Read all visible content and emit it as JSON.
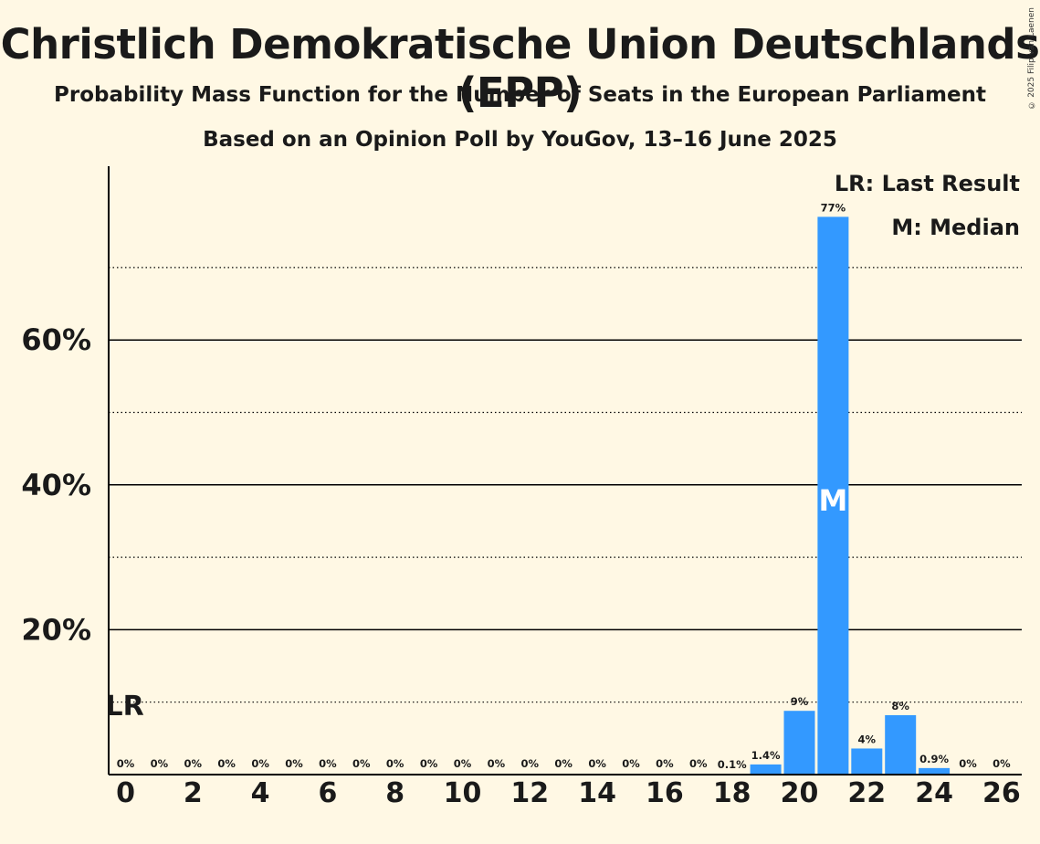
{
  "title": "Christlich Demokratische Union Deutschlands (EPP)",
  "subtitle": "Probability Mass Function for the Number of Seats in the European Parliament",
  "subtitle2": "Based on an Opinion Poll by YouGov, 13–16 June 2025",
  "copyright": "© 2025 Filip van Laenen",
  "colors": {
    "bar": "#3399ff",
    "background": "#fff8e4",
    "text": "#1a1a1a"
  },
  "chart_data": {
    "type": "bar",
    "categories": [
      0,
      1,
      2,
      3,
      4,
      5,
      6,
      7,
      8,
      9,
      10,
      11,
      12,
      13,
      14,
      15,
      16,
      17,
      18,
      19,
      20,
      21,
      22,
      23,
      24,
      25,
      26
    ],
    "values": [
      0,
      0,
      0,
      0,
      0,
      0,
      0,
      0,
      0,
      0,
      0,
      0,
      0,
      0,
      0,
      0,
      0,
      0,
      0.1,
      1.4,
      8.8,
      77,
      3.6,
      8.2,
      0.9,
      0,
      0
    ],
    "labels": [
      "0%",
      "0%",
      "0%",
      "0%",
      "0%",
      "0%",
      "0%",
      "0%",
      "0%",
      "0%",
      "0%",
      "0%",
      "0%",
      "0%",
      "0%",
      "0%",
      "0%",
      "0%",
      "0.1%",
      "1.4%",
      "9%",
      "77%",
      "4%",
      "8%",
      "0.9%",
      "0%",
      "0%"
    ],
    "x_ticks": [
      "0",
      "2",
      "4",
      "6",
      "8",
      "10",
      "12",
      "14",
      "16",
      "18",
      "20",
      "22",
      "24",
      "26"
    ],
    "y_ticks": [
      "20%",
      "40%",
      "60%"
    ],
    "ylim": [
      0,
      84
    ],
    "major_gridlines": [
      20,
      40,
      60
    ],
    "minor_gridlines": [
      10,
      30,
      50,
      70
    ],
    "last_result_seat": 0,
    "last_result_marker": "LR",
    "median_seat": 21,
    "median_marker": "M",
    "legend": [
      "LR: Last Result",
      "M: Median"
    ]
  }
}
